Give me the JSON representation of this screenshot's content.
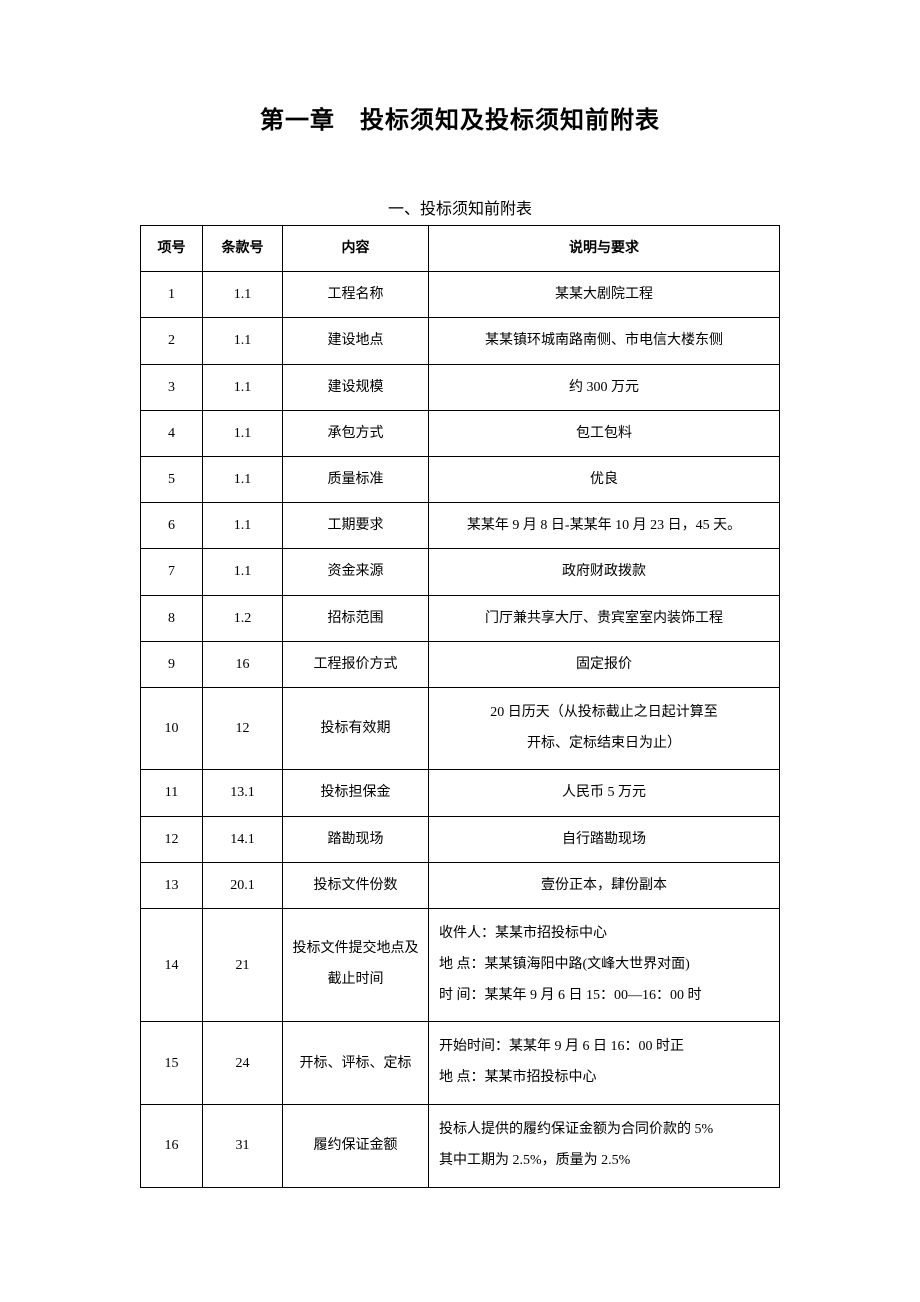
{
  "chapterTitle": "第一章　投标须知及投标须知前附表",
  "tableTitle": "一、投标须知前附表",
  "headers": {
    "itemNo": "项号",
    "clauseNo": "条款号",
    "content": "内容",
    "description": "说明与要求"
  },
  "rows": [
    {
      "itemNo": "1",
      "clauseNo": "1.1",
      "content": "工程名称",
      "desc": "某某大剧院工程",
      "align": "center"
    },
    {
      "itemNo": "2",
      "clauseNo": "1.1",
      "content": "建设地点",
      "desc": "某某镇环城南路南侧、市电信大楼东侧",
      "align": "center"
    },
    {
      "itemNo": "3",
      "clauseNo": "1.1",
      "content": "建设规模",
      "desc": "约 300 万元",
      "align": "center"
    },
    {
      "itemNo": "4",
      "clauseNo": "1.1",
      "content": "承包方式",
      "desc": "包工包料",
      "align": "center"
    },
    {
      "itemNo": "5",
      "clauseNo": "1.1",
      "content": "质量标准",
      "desc": "优良",
      "align": "center"
    },
    {
      "itemNo": "6",
      "clauseNo": "1.1",
      "content": "工期要求",
      "desc": "某某年 9 月 8 日-某某年 10 月 23 日，45 天。",
      "align": "center"
    },
    {
      "itemNo": "7",
      "clauseNo": "1.1",
      "content": "资金来源",
      "desc": "政府财政拨款",
      "align": "center"
    },
    {
      "itemNo": "8",
      "clauseNo": "1.2",
      "content": "招标范围",
      "desc": "门厅兼共享大厅、贵宾室室内装饰工程",
      "align": "center"
    },
    {
      "itemNo": "9",
      "clauseNo": "16",
      "content": "工程报价方式",
      "desc": "固定报价",
      "align": "center"
    },
    {
      "itemNo": "10",
      "clauseNo": "12",
      "content": "投标有效期",
      "desc": "20 日历天（从投标截止之日起计算至\n开标、定标结束日为止）",
      "align": "center",
      "multi": true
    },
    {
      "itemNo": "11",
      "clauseNo": "13.1",
      "content": "投标担保金",
      "desc": "人民币 5 万元",
      "align": "center"
    },
    {
      "itemNo": "12",
      "clauseNo": "14.1",
      "content": "踏勘现场",
      "desc": "自行踏勘现场",
      "align": "center"
    },
    {
      "itemNo": "13",
      "clauseNo": "20.1",
      "content": "投标文件份数",
      "desc": "壹份正本，肆份副本",
      "align": "center"
    },
    {
      "itemNo": "14",
      "clauseNo": "21",
      "content": "投标文件提交地点及\n截止时间",
      "desc": "收件人：某某市招投标中心\n地 点：某某镇海阳中路(文峰大世界对面)\n时 间：某某年 9 月 6 日 15：00—16：00 时",
      "align": "left",
      "multi": true
    },
    {
      "itemNo": "15",
      "clauseNo": "24",
      "content": "开标、评标、定标",
      "desc": "开始时间：某某年 9 月 6 日 16：00 时正\n地 点：某某市招投标中心",
      "align": "left",
      "multi": true
    },
    {
      "itemNo": "16",
      "clauseNo": "31",
      "content": "履约保证金额",
      "desc": "投标人提供的履约保证金额为合同价款的 5%\n其中工期为 2.5%，质量为 2.5%",
      "align": "left",
      "multi": true
    }
  ]
}
